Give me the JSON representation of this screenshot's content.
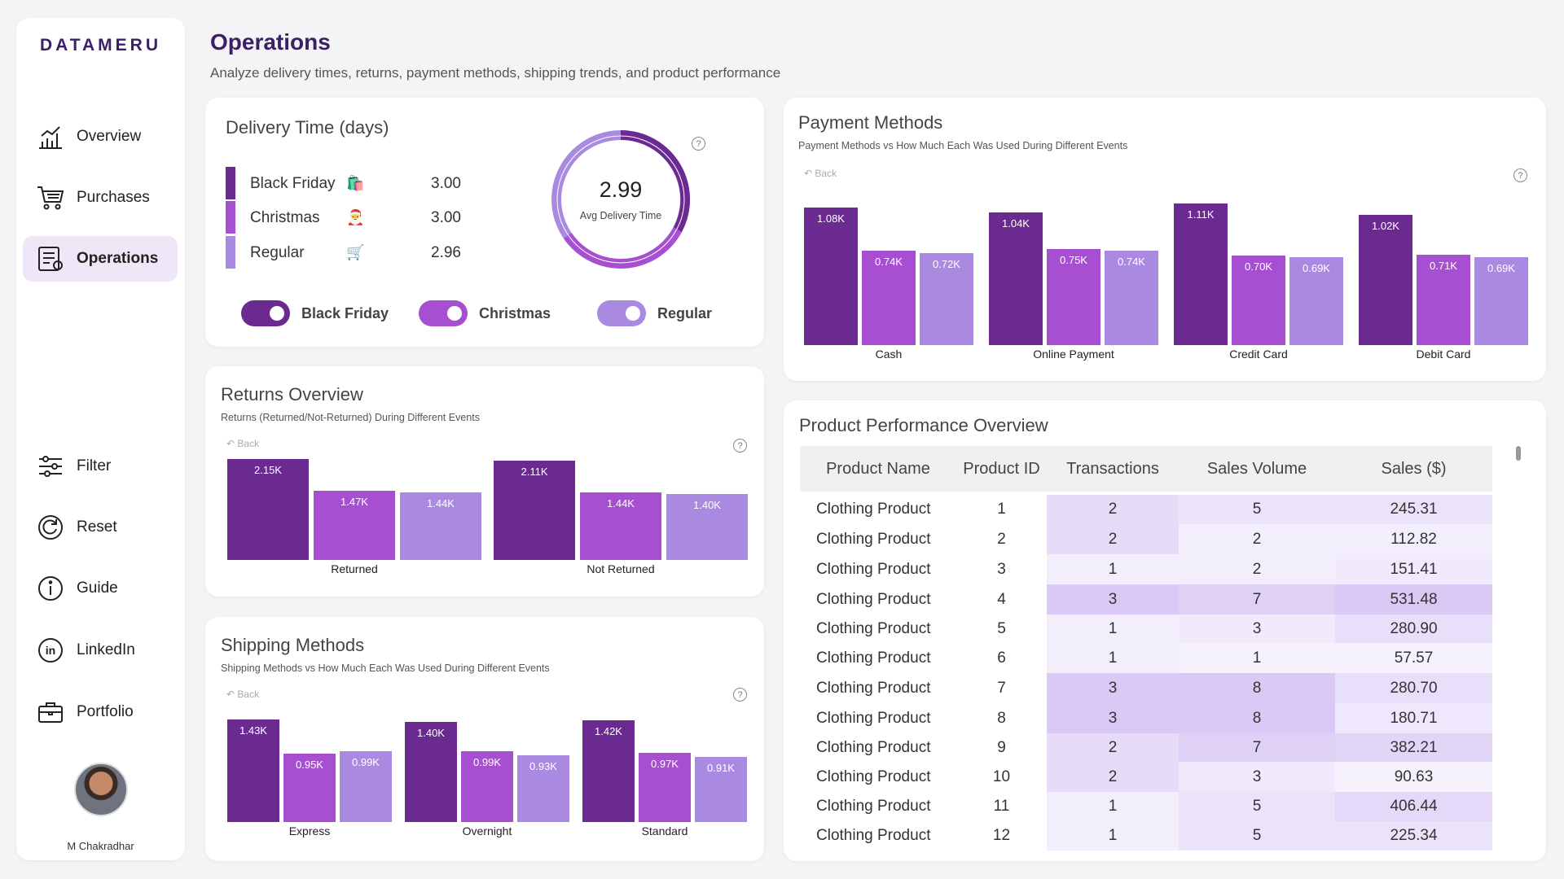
{
  "brand": "DATAMERU",
  "nav_top": [
    {
      "label": "Overview",
      "icon": "bar-chart-icon",
      "active": false
    },
    {
      "label": "Purchases",
      "icon": "cart-icon",
      "active": false
    },
    {
      "label": "Operations",
      "icon": "operations-icon",
      "active": true
    }
  ],
  "nav_bottom": [
    {
      "label": "Filter",
      "icon": "filter-icon"
    },
    {
      "label": "Reset",
      "icon": "reset-icon"
    },
    {
      "label": "Guide",
      "icon": "info-icon"
    },
    {
      "label": "LinkedIn",
      "icon": "linkedin-icon"
    },
    {
      "label": "Portfolio",
      "icon": "briefcase-icon"
    }
  ],
  "user_name": "M Chakradhar",
  "header": {
    "title": "Operations",
    "subtitle": "Analyze delivery times, returns, payment methods, shipping trends, and product performance"
  },
  "colors": {
    "black_friday": "#6a2a8f",
    "christmas": "#a64fd0",
    "regular": "#a98ae0"
  },
  "delivery": {
    "title": "Delivery Time (days)",
    "rows": [
      {
        "name": "Black Friday",
        "emoji": "🛍️",
        "value": "3.00"
      },
      {
        "name": "Christmas",
        "emoji": "🎅",
        "value": "3.00"
      },
      {
        "name": "Regular",
        "emoji": "🛒",
        "value": "2.96"
      }
    ],
    "avg_value": "2.99",
    "avg_label": "Avg Delivery Time",
    "toggles": [
      "Black Friday",
      "Christmas",
      "Regular"
    ]
  },
  "back_label": "Back",
  "returns": {
    "title": "Returns Overview",
    "subtitle": "Returns (Returned/Not-Returned) During Different Events"
  },
  "shipping": {
    "title": "Shipping Methods",
    "subtitle": "Shipping Methods vs How Much Each Was Used During Different Events"
  },
  "payment": {
    "title": "Payment Methods",
    "subtitle": "Payment Methods vs How Much Each Was Used During Different Events"
  },
  "chart_data": [
    {
      "id": "returns",
      "type": "bar",
      "categories": [
        "Returned",
        "Not Returned"
      ],
      "series": [
        {
          "values": [
            2150,
            2110
          ],
          "labels": [
            "2.15K",
            "2.11K"
          ]
        },
        {
          "values": [
            1470,
            1440
          ],
          "labels": [
            "1.47K",
            "1.44K"
          ]
        },
        {
          "values": [
            1440,
            1400
          ],
          "labels": [
            "1.44K",
            "1.40K"
          ]
        }
      ]
    },
    {
      "id": "shipping",
      "type": "bar",
      "categories": [
        "Express",
        "Overnight",
        "Standard"
      ],
      "series": [
        {
          "values": [
            1430,
            1400,
            1420
          ],
          "labels": [
            "1.43K",
            "1.40K",
            "1.42K"
          ]
        },
        {
          "values": [
            950,
            990,
            970
          ],
          "labels": [
            "0.95K",
            "0.99K",
            "0.97K"
          ]
        },
        {
          "values": [
            990,
            930,
            910
          ],
          "labels": [
            "0.99K",
            "0.93K",
            "0.91K"
          ]
        }
      ]
    },
    {
      "id": "payment",
      "type": "bar",
      "categories": [
        "Cash",
        "Online Payment",
        "Credit Card",
        "Debit Card"
      ],
      "series": [
        {
          "values": [
            1080,
            1040,
            1110,
            1020
          ],
          "labels": [
            "1.08K",
            "1.04K",
            "1.11K",
            "1.02K"
          ]
        },
        {
          "values": [
            740,
            750,
            700,
            710
          ],
          "labels": [
            "0.74K",
            "0.75K",
            "0.70K",
            "0.71K"
          ]
        },
        {
          "values": [
            720,
            740,
            690,
            690
          ],
          "labels": [
            "0.72K",
            "0.74K",
            "0.69K",
            "0.69K"
          ]
        }
      ]
    }
  ],
  "product": {
    "title": "Product Performance Overview",
    "columns": [
      "Product Name",
      "Product ID",
      "Transactions",
      "Sales Volume",
      "Sales ($)"
    ],
    "rows": [
      [
        "Clothing Product",
        "1",
        "2",
        "5",
        "245.31"
      ],
      [
        "Clothing Product",
        "2",
        "2",
        "2",
        "112.82"
      ],
      [
        "Clothing Product",
        "3",
        "1",
        "2",
        "151.41"
      ],
      [
        "Clothing Product",
        "4",
        "3",
        "7",
        "531.48"
      ],
      [
        "Clothing Product",
        "5",
        "1",
        "3",
        "280.90"
      ],
      [
        "Clothing Product",
        "6",
        "1",
        "1",
        "57.57"
      ],
      [
        "Clothing Product",
        "7",
        "3",
        "8",
        "280.70"
      ],
      [
        "Clothing Product",
        "8",
        "3",
        "8",
        "180.71"
      ],
      [
        "Clothing Product",
        "9",
        "2",
        "7",
        "382.21"
      ],
      [
        "Clothing Product",
        "10",
        "2",
        "3",
        "90.63"
      ],
      [
        "Clothing Product",
        "11",
        "1",
        "5",
        "406.44"
      ],
      [
        "Clothing Product",
        "12",
        "1",
        "5",
        "225.34"
      ]
    ]
  }
}
